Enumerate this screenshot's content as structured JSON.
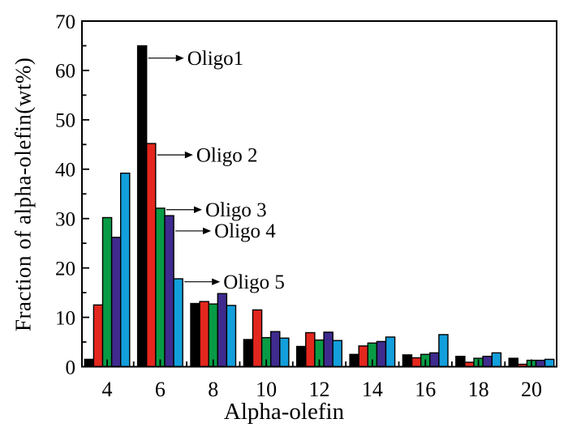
{
  "chart_data": {
    "type": "bar",
    "title": "",
    "xlabel": "Alpha-olefin",
    "ylabel": "Fraction of alpha-olefin(wt%)",
    "ylim": [
      0,
      70
    ],
    "xlim": [
      3.05,
      20.95
    ],
    "grid": false,
    "legend_position": "none",
    "yticks": [
      0,
      10,
      20,
      30,
      40,
      50,
      60,
      70
    ],
    "yticks_minor": [
      5,
      15,
      25,
      35,
      45,
      55,
      65
    ],
    "xticks_minor": [
      5,
      7,
      9,
      11,
      13,
      15,
      17,
      19
    ],
    "categories": [
      4,
      6,
      8,
      10,
      12,
      14,
      16,
      18,
      20
    ],
    "series": [
      {
        "name": "Oligo1",
        "color": "#000000",
        "values": [
          1.5,
          65.0,
          12.8,
          5.5,
          4.1,
          2.5,
          2.4,
          2.1,
          1.7
        ]
      },
      {
        "name": "Oligo 2",
        "color": "#e4271e",
        "values": [
          12.5,
          45.2,
          13.2,
          11.5,
          6.9,
          4.2,
          1.8,
          0.9,
          0.5
        ]
      },
      {
        "name": "Oligo 3",
        "color": "#089b45",
        "values": [
          30.2,
          32.1,
          12.7,
          5.9,
          5.4,
          4.8,
          2.5,
          1.7,
          1.3
        ]
      },
      {
        "name": "Oligo 4",
        "color": "#3f2b8e",
        "values": [
          26.2,
          30.6,
          14.8,
          7.1,
          7.0,
          5.1,
          2.8,
          2.1,
          1.3
        ]
      },
      {
        "name": "Oligo 5",
        "color": "#129fdc",
        "values": [
          39.2,
          17.8,
          12.4,
          5.8,
          5.3,
          6.0,
          6.5,
          2.8,
          1.5
        ]
      }
    ],
    "annotations": [
      {
        "label": "Oligo1",
        "target_category": 6,
        "series_index": 0,
        "arrow_y": 62.5
      },
      {
        "label": "Oligo 2",
        "target_category": 6,
        "series_index": 1,
        "arrow_y": 42.9
      },
      {
        "label": "Oligo 3",
        "target_category": 6,
        "series_index": 2,
        "arrow_y": 31.8
      },
      {
        "label": "Oligo 4",
        "target_category": 6,
        "series_index": 3,
        "arrow_y": 27.5
      },
      {
        "label": "Oligo 5",
        "target_category": 6,
        "series_index": 4,
        "arrow_y": 17.2
      }
    ],
    "axis_color": "#000000"
  }
}
